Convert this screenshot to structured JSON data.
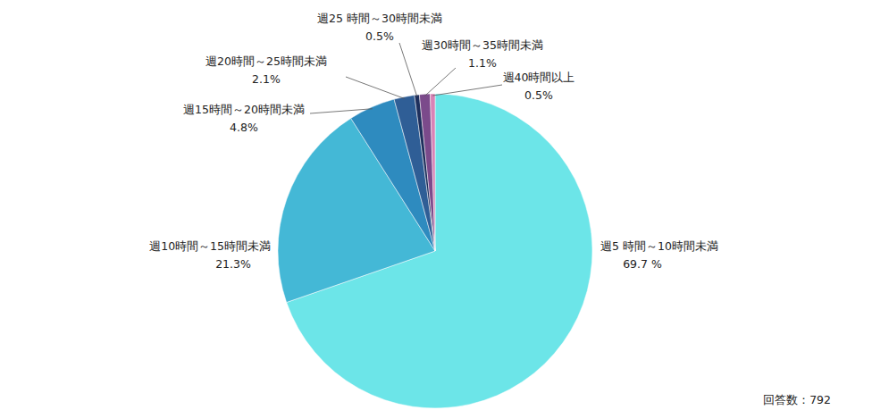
{
  "chart_data": {
    "type": "pie",
    "categories": [
      "週5 時間～10時間未満",
      "週10時間～15時間未満",
      "週15時間～20時間未満",
      "週20時間～25時間未満",
      "週25 時間～30時間未満",
      "週30時間～35時間未満",
      "週40時間以上"
    ],
    "values": [
      69.7,
      21.3,
      4.8,
      2.1,
      0.5,
      1.1,
      0.5
    ],
    "value_labels": [
      "69.7 %",
      "21.3%",
      "4.8%",
      "2.1%",
      "0.5%",
      "1.1%",
      "0.5%"
    ],
    "colors": [
      "#6ce5e8",
      "#44b8d6",
      "#2e8bbf",
      "#2f5e96",
      "#1e2f5c",
      "#7b4a8b",
      "#d883b6"
    ],
    "data_labels": true,
    "annotation": "回答数：792"
  }
}
